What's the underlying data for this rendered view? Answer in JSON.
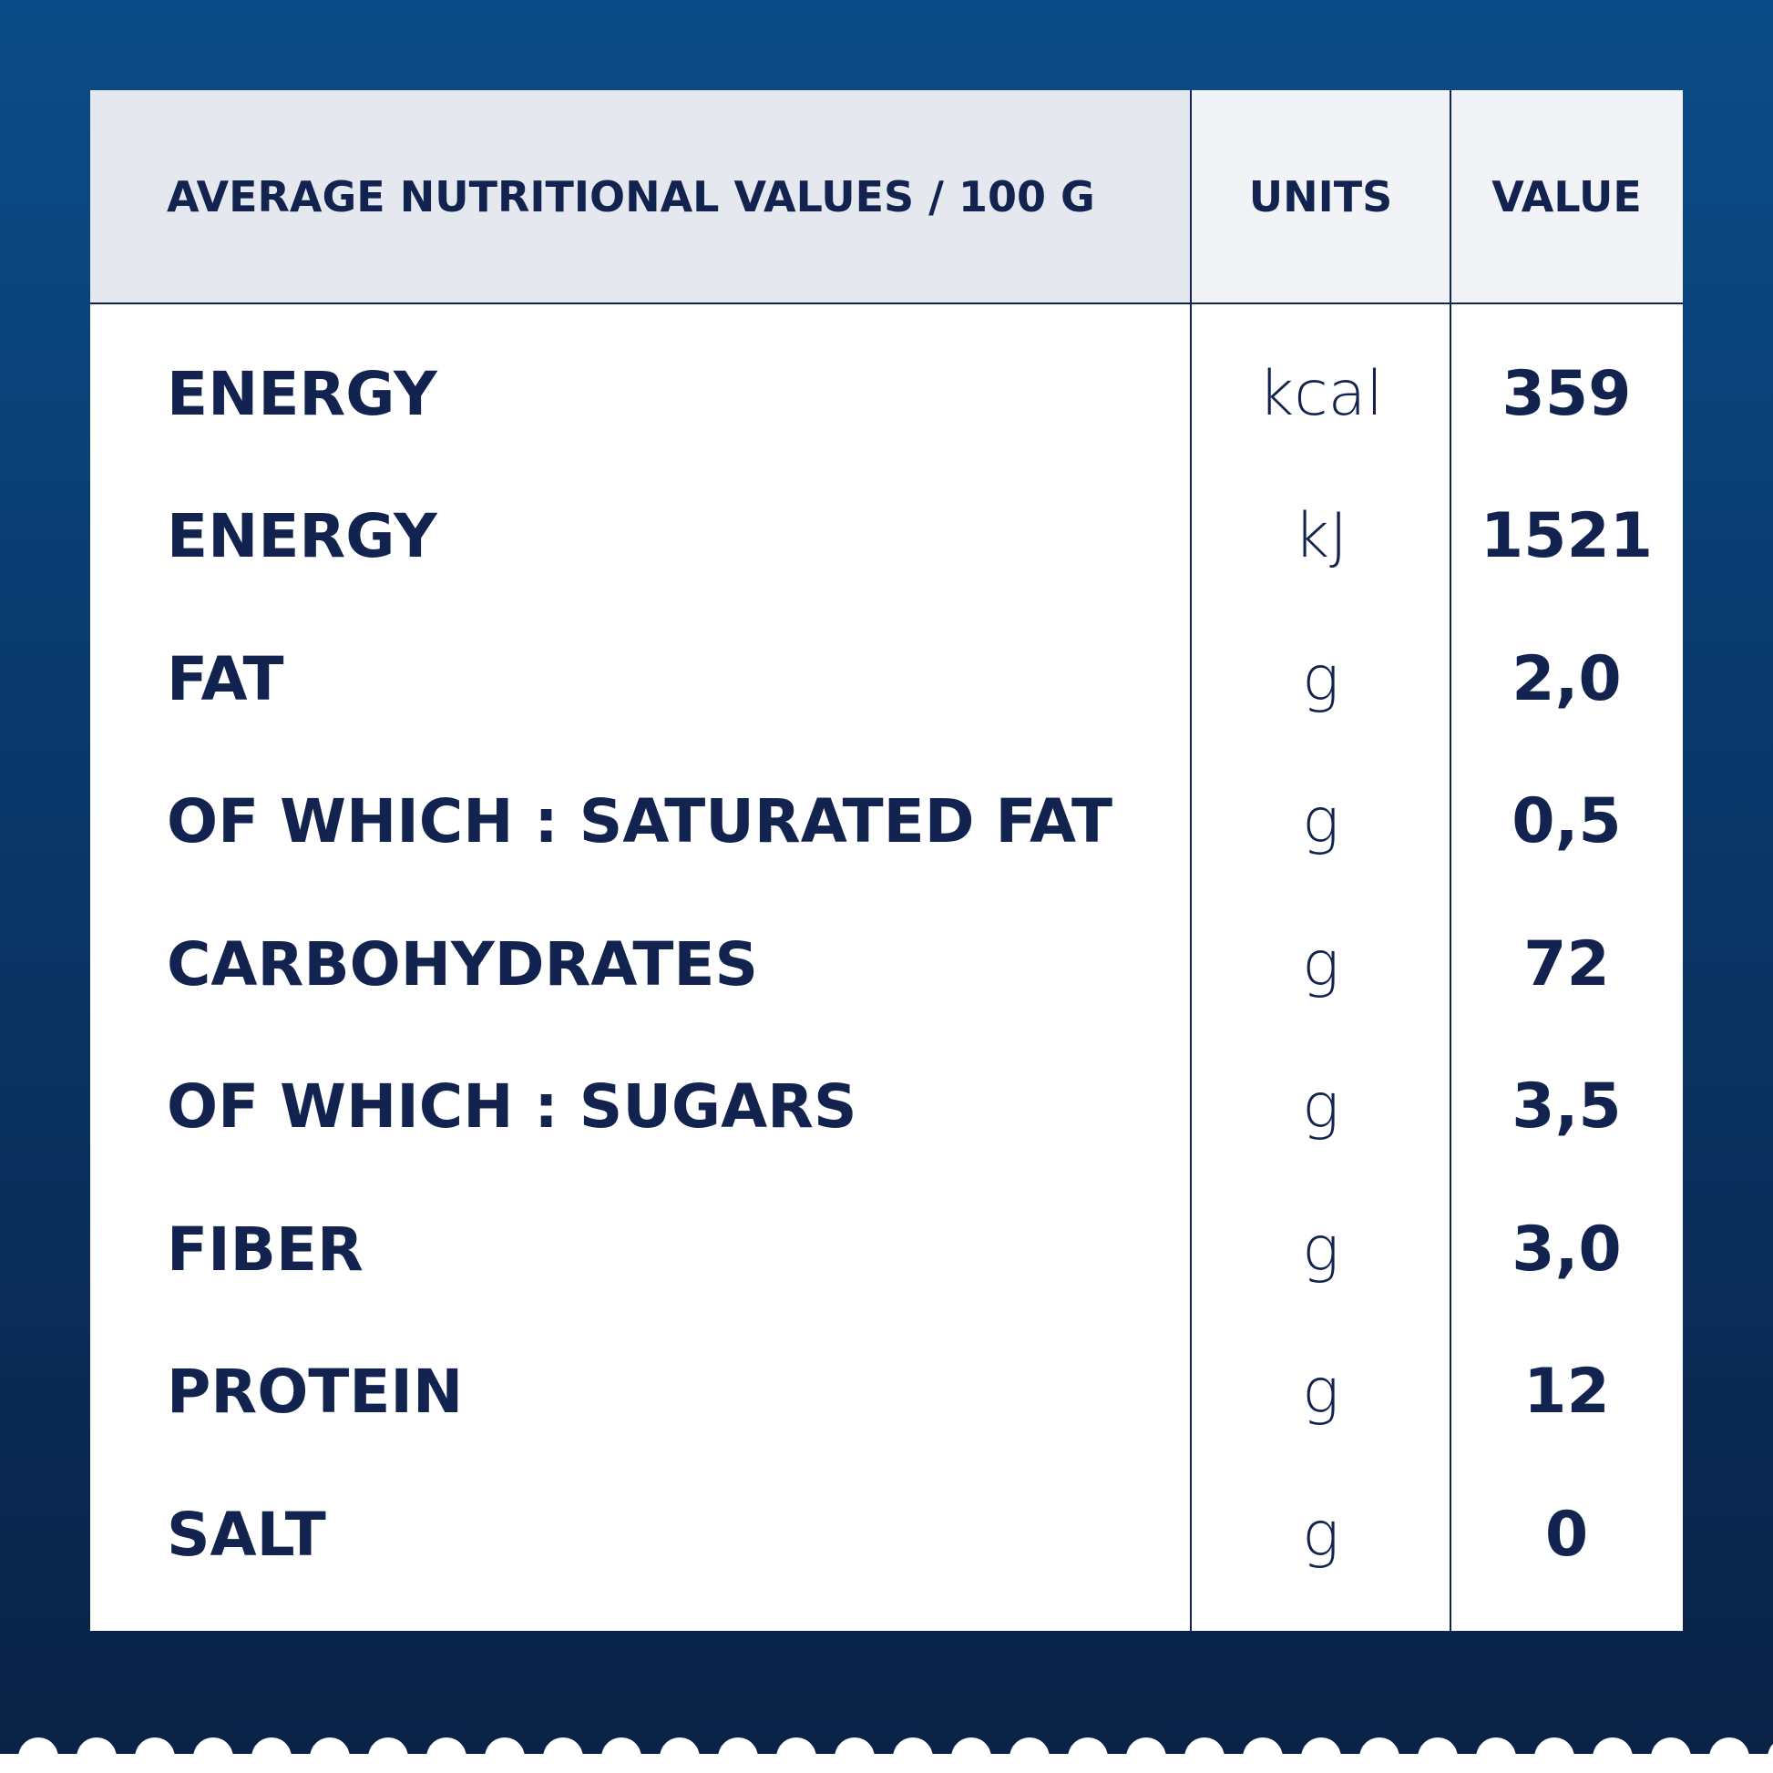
{
  "table": {
    "header": [
      "AVERAGE NUTRITIONAL VALUES / 100 G",
      "UNITS",
      "VALUE"
    ],
    "rows": [
      [
        "ENERGY",
        "kcal",
        "359"
      ],
      [
        "ENERGY",
        "kJ",
        "1521"
      ],
      [
        "FAT",
        "g",
        "2,0"
      ],
      [
        "OF WHICH : SATURATED FAT",
        "g",
        "0,5"
      ],
      [
        "CARBOHYDRATES",
        "g",
        "72"
      ],
      [
        "OF WHICH : SUGARS",
        "g",
        "3,5"
      ],
      [
        "FIBER",
        "g",
        "3,0"
      ],
      [
        "PROTEIN",
        "g",
        "12"
      ],
      [
        "SALT",
        "g",
        "0"
      ]
    ]
  }
}
